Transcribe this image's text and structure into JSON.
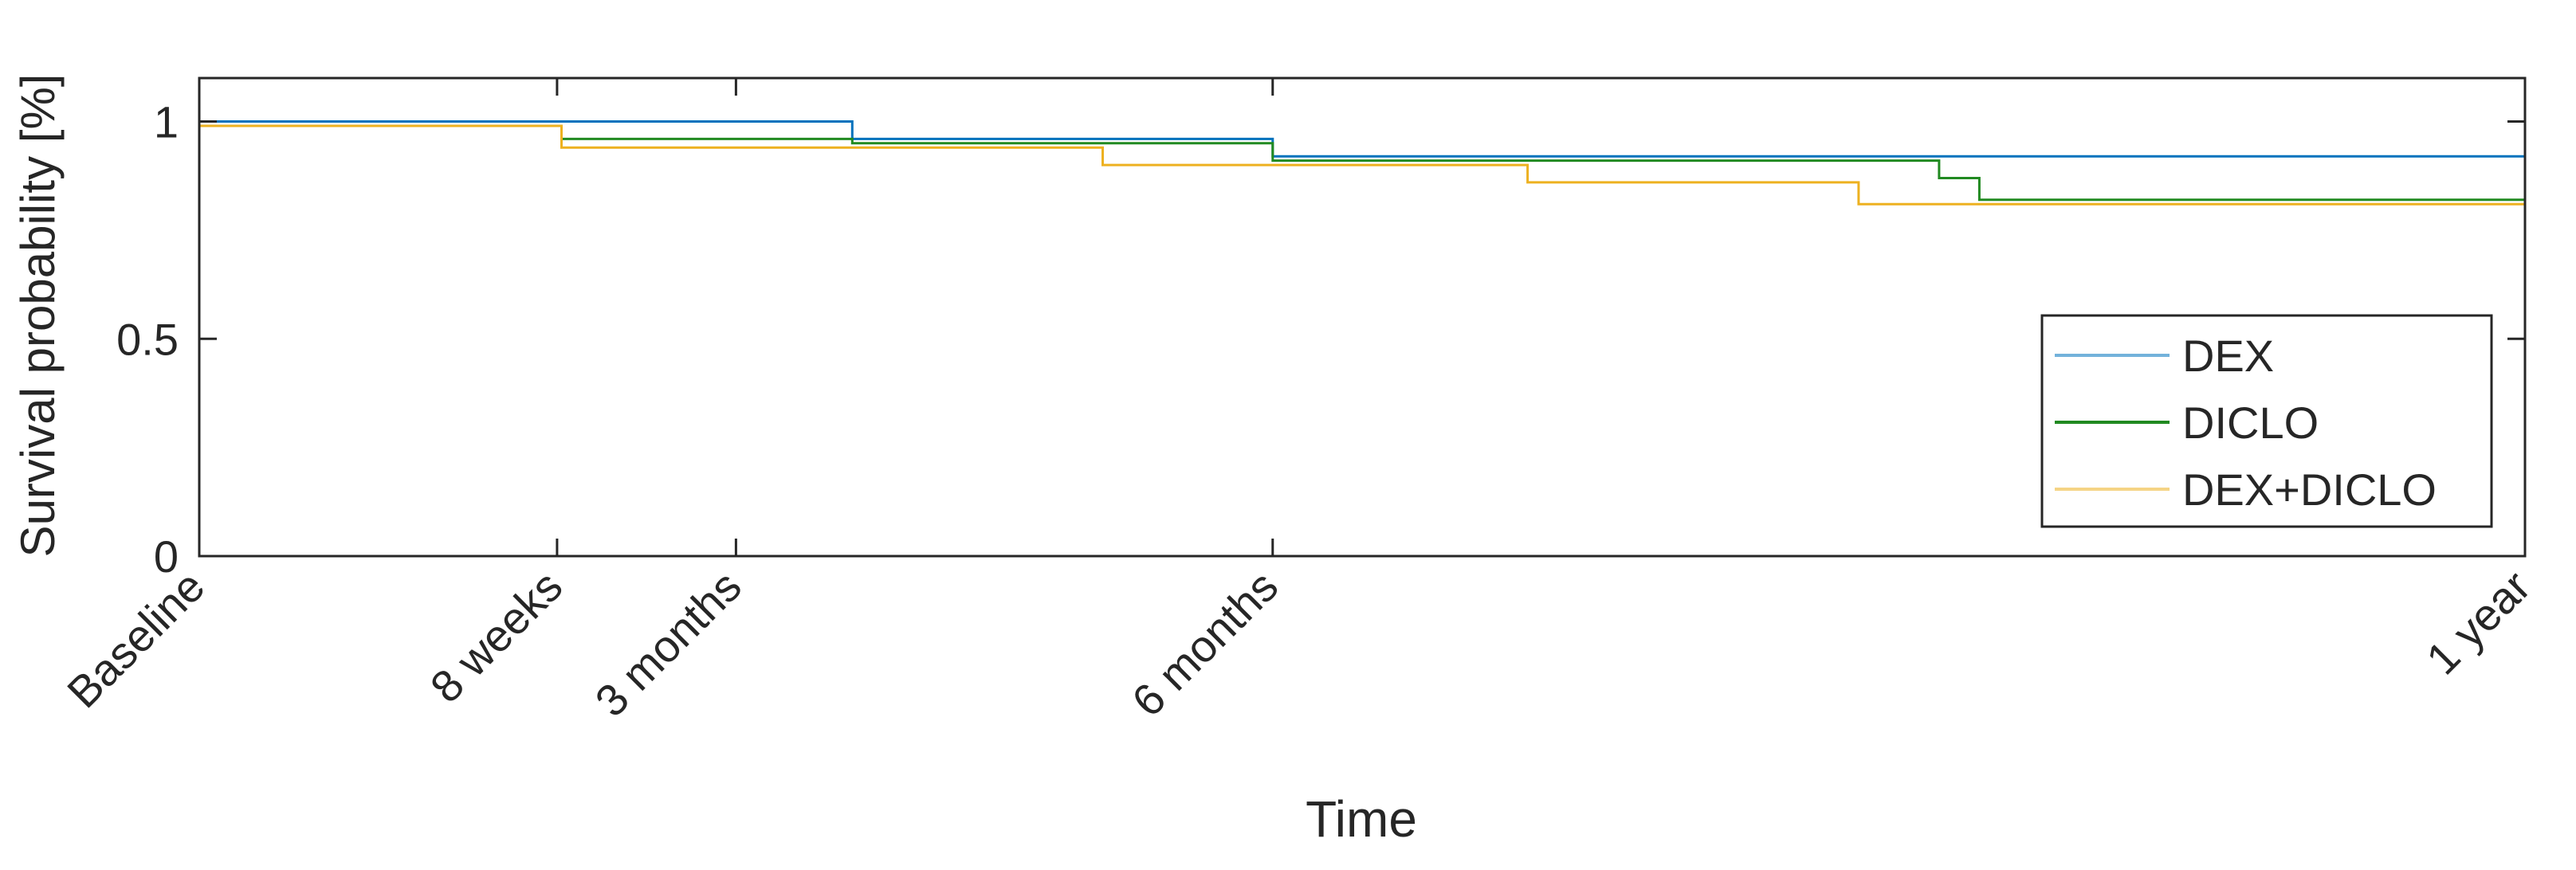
{
  "chart_data": {
    "type": "line",
    "step": true,
    "xlabel": "Time",
    "ylabel": "Survival probability [%]",
    "ylim": [
      0,
      1.1
    ],
    "xlim": [
      0,
      52
    ],
    "x_ticks": [
      {
        "value": 0,
        "label": "Baseline"
      },
      {
        "value": 8,
        "label": "8 weeks"
      },
      {
        "value": 12,
        "label": "3 months"
      },
      {
        "value": 24,
        "label": "6 months"
      },
      {
        "value": 52,
        "label": "1 year"
      }
    ],
    "y_ticks": [
      {
        "value": 0,
        "label": "0"
      },
      {
        "value": 0.5,
        "label": "0.5"
      },
      {
        "value": 1,
        "label": "1"
      }
    ],
    "grid": false,
    "legend_position": "lower-right",
    "series": [
      {
        "name": "DEX",
        "color": "#0072BD",
        "x": [
          0,
          14.6,
          14.6,
          24.0,
          24.0,
          52
        ],
        "y": [
          1.0,
          1.0,
          0.96,
          0.96,
          0.92,
          0.92
        ]
      },
      {
        "name": "DICLO",
        "color": "#218A21",
        "x": [
          0,
          8.1,
          8.1,
          14.6,
          14.6,
          24.0,
          24.0,
          38.9,
          38.9,
          39.8,
          39.8,
          52
        ],
        "y": [
          0.99,
          0.99,
          0.96,
          0.96,
          0.95,
          0.95,
          0.91,
          0.91,
          0.87,
          0.87,
          0.82,
          0.82
        ]
      },
      {
        "name": "DEX+DICLO",
        "color": "#EDB120",
        "x": [
          0,
          8.1,
          8.1,
          20.2,
          20.2,
          29.7,
          29.7,
          37.1,
          37.1,
          52
        ],
        "y": [
          0.99,
          0.99,
          0.94,
          0.94,
          0.9,
          0.9,
          0.86,
          0.86,
          0.81,
          0.81
        ]
      }
    ]
  }
}
